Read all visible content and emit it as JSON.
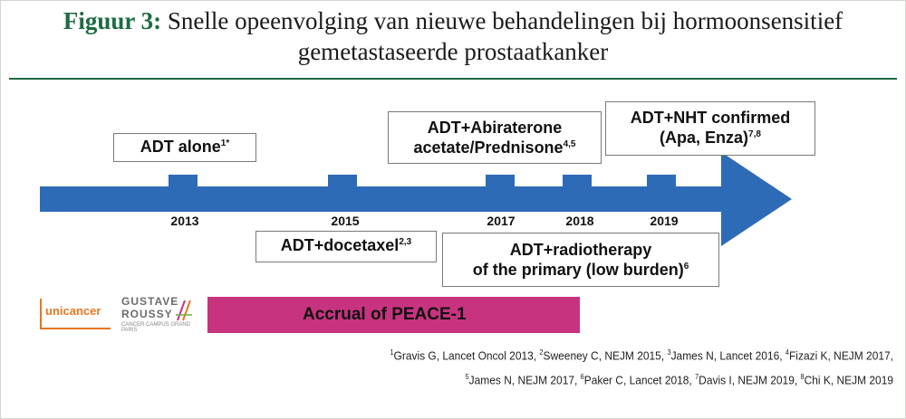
{
  "figure": {
    "label": "Figuur 3:",
    "title_line1": "Snelle opeenvolging van nieuwe behandelingen bij hormoonsensitief",
    "title_line2": "gemetastaseerde prostaatkanker"
  },
  "colors": {
    "arrow": "#2e6bb7",
    "accrual": "#c8337f",
    "title_accent": "#1e6b43",
    "unicancer": "#e8761f"
  },
  "timeline": {
    "years": [
      "2013",
      "2015",
      "2017",
      "2018",
      "2019"
    ]
  },
  "milestones": {
    "adt_alone": {
      "text": "ADT alone",
      "sup": "1*"
    },
    "abiraterone": {
      "line1": "ADT+Abiraterone",
      "line2": "acetate/Prednisone",
      "sup": "4,5"
    },
    "nht": {
      "line1": "ADT+NHT confirmed",
      "line2": "(Apa, Enza)",
      "sup": "7,8"
    },
    "docetaxel": {
      "text": "ADT+docetaxel",
      "sup": "2,3"
    },
    "radiotherapy": {
      "line1": "ADT+radiotherapy",
      "line2": "of the primary (low burden)",
      "sup": "6"
    }
  },
  "accrual": {
    "label": "Accrual of PEACE-1"
  },
  "logos": {
    "unicancer": "unicancer",
    "gustave": "GUSTAVE",
    "roussy": "ROUSSY",
    "roussy_sub": "CANCER CAMPUS GRAND PARIS"
  },
  "references": [
    {
      "sup": "1",
      "text": "Gravis G, Lancet Oncol 2013, "
    },
    {
      "sup": "2",
      "text": "Sweeney C, NEJM 2015, "
    },
    {
      "sup": "3",
      "text": "James N, Lancet 2016, "
    },
    {
      "sup": "4",
      "text": "Fizazi K, NEJM 2017,"
    },
    {
      "sup": "5",
      "text": "James N, NEJM 2017, "
    },
    {
      "sup": "6",
      "text": "Paker C, Lancet 2018, "
    },
    {
      "sup": "7",
      "text": "Davis I, NEJM 2019, "
    },
    {
      "sup": "8",
      "text": "Chi K, NEJM 2019"
    }
  ]
}
